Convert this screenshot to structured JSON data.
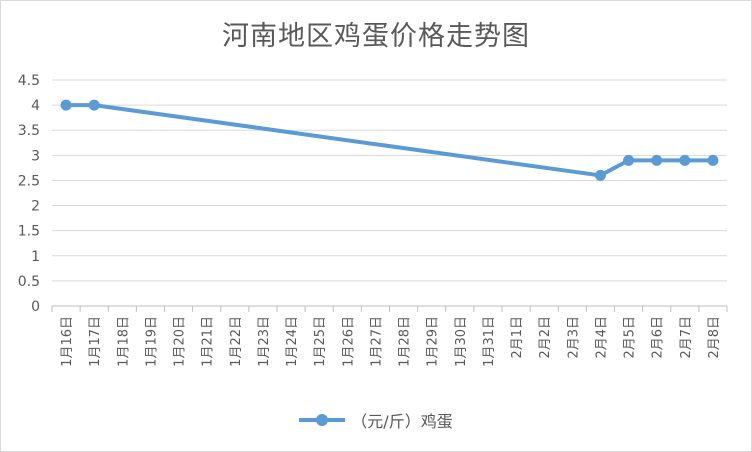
{
  "chart_data": {
    "type": "line",
    "title": "河南地区鸡蛋价格走势图",
    "xlabel": "",
    "ylabel": "",
    "ylim": [
      0,
      4.5
    ],
    "yticks": [
      "0",
      "0.5",
      "1",
      "1.5",
      "2",
      "2.5",
      "3",
      "3.5",
      "4",
      "4.5"
    ],
    "grid": true,
    "legend_position": "bottom",
    "categories": [
      "1月16日",
      "1月17日",
      "1月18日",
      "1月19日",
      "1月20日",
      "1月21日",
      "1月22日",
      "1月23日",
      "1月24日",
      "1月25日",
      "1月26日",
      "1月27日",
      "1月28日",
      "1月29日",
      "1月30日",
      "1月31日",
      "2月1日",
      "2月2日",
      "2月3日",
      "2月4日",
      "2月5日",
      "2月6日",
      "2月7日",
      "2月8日"
    ],
    "series": [
      {
        "name": "（元/斤）鸡蛋",
        "color": "#5b9bd5",
        "values": [
          4.0,
          4.0,
          null,
          null,
          null,
          null,
          null,
          null,
          null,
          null,
          null,
          null,
          null,
          null,
          null,
          null,
          null,
          null,
          null,
          2.6,
          2.9,
          2.9,
          2.9,
          2.9
        ]
      }
    ]
  }
}
